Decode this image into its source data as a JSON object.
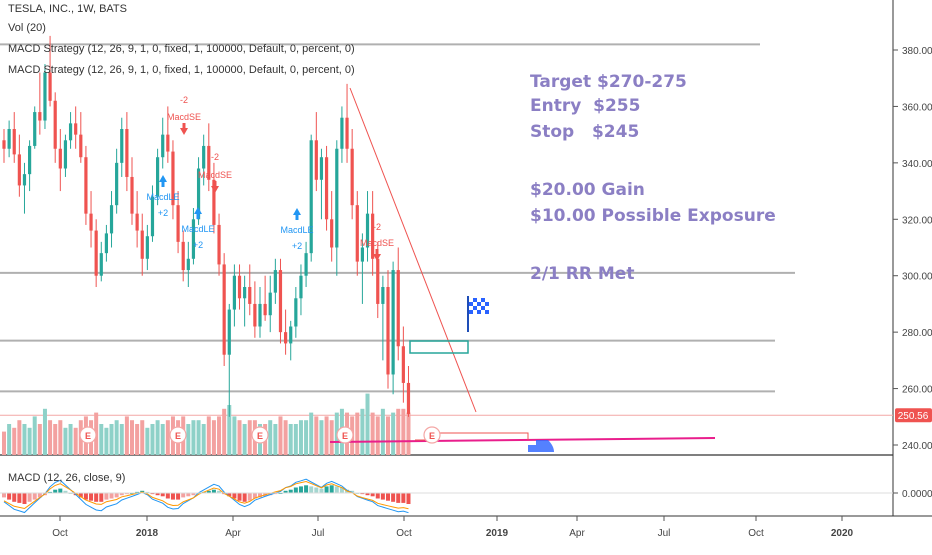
{
  "header": {
    "symbol_line": "TESLA, INC., 1W, BATS",
    "vol_line": "Vol (20)",
    "strategy_line_1": "MACD Strategy (12, 26, 9, 1, 0, fixed, 1, 100000, Default, 0, percent, 0)",
    "strategy_line_2": "MACD Strategy (12, 26, 9, 1, 0, fixed, 1, 100000, Default, 0, percent, 0)"
  },
  "macd_pane": {
    "title": "MACD (12, 26, close, 9)",
    "zero_label": "0.0000"
  },
  "price_badge": "250.56",
  "notes": {
    "line1": "Target $270-275",
    "line2": "Entry  $255",
    "line3": "Stop   $245",
    "line4": "$20.00 Gain",
    "line5": "$10.00 Possible Exposure",
    "line6": "2/1 RR Met"
  },
  "signals": {
    "macdse": "MacdSE",
    "macdle": "MacdLE",
    "minus2": "-2",
    "plus2": "+2",
    "earnings": "E"
  },
  "colors": {
    "up": "#26a69a",
    "down": "#ef5350",
    "vol_up": "#8ed1c8",
    "vol_down": "#f3a1a0",
    "note": "#8b7fc4",
    "hline": "#b0b0b0",
    "trend": "#ef5350",
    "magenta": "#e91e8c",
    "box": "#26a69a"
  },
  "chart_data": {
    "type": "candlestick",
    "title": "TESLA, INC., 1W, BATS",
    "x_ticks": [
      "Oct",
      "2018",
      "Apr",
      "Jul",
      "Oct",
      "2019",
      "Apr",
      "Jul",
      "Oct",
      "2020"
    ],
    "y_ticks": [
      240,
      260,
      280,
      300,
      320,
      340,
      360,
      380
    ],
    "ylim": [
      233,
      395
    ],
    "last_price": 250.56,
    "horizontal_levels": [
      382,
      301,
      277,
      259
    ],
    "series": [
      {
        "name": "TESLA, INC.",
        "ohlc": [
          [
            348,
            352,
            340,
            345
          ],
          [
            345,
            355,
            342,
            352
          ],
          [
            352,
            358,
            340,
            343
          ],
          [
            343,
            350,
            328,
            332
          ],
          [
            332,
            340,
            322,
            336
          ],
          [
            336,
            348,
            330,
            346
          ],
          [
            346,
            360,
            345,
            358
          ],
          [
            358,
            372,
            350,
            355
          ],
          [
            355,
            375,
            352,
            372
          ],
          [
            372,
            385,
            360,
            362
          ],
          [
            362,
            365,
            340,
            345
          ],
          [
            345,
            352,
            330,
            338
          ],
          [
            338,
            350,
            335,
            348
          ],
          [
            348,
            358,
            345,
            354
          ],
          [
            354,
            360,
            345,
            350
          ],
          [
            350,
            358,
            340,
            342
          ],
          [
            342,
            346,
            318,
            322
          ],
          [
            322,
            330,
            310,
            316
          ],
          [
            316,
            320,
            296,
            300
          ],
          [
            300,
            312,
            298,
            308
          ],
          [
            308,
            318,
            305,
            315
          ],
          [
            315,
            330,
            310,
            325
          ],
          [
            325,
            345,
            322,
            340
          ],
          [
            340,
            356,
            335,
            352
          ],
          [
            352,
            358,
            330,
            335
          ],
          [
            335,
            342,
            318,
            322
          ],
          [
            322,
            330,
            310,
            316
          ],
          [
            316,
            322,
            300,
            306
          ],
          [
            306,
            318,
            302,
            314
          ],
          [
            314,
            332,
            312,
            328
          ],
          [
            328,
            345,
            325,
            342
          ],
          [
            342,
            356,
            338,
            350
          ],
          [
            350,
            360,
            340,
            344
          ],
          [
            344,
            348,
            320,
            325
          ],
          [
            325,
            330,
            308,
            312
          ],
          [
            312,
            316,
            298,
            302
          ],
          [
            302,
            312,
            296,
            306
          ],
          [
            306,
            324,
            304,
            320
          ],
          [
            320,
            342,
            318,
            338
          ],
          [
            338,
            350,
            332,
            346
          ],
          [
            346,
            354,
            330,
            334
          ],
          [
            334,
            340,
            315,
            318
          ],
          [
            318,
            322,
            300,
            304
          ],
          [
            304,
            308,
            268,
            272
          ],
          [
            272,
            290,
            250,
            288
          ],
          [
            288,
            304,
            282,
            300
          ],
          [
            300,
            304,
            288,
            292
          ],
          [
            292,
            300,
            282,
            296
          ],
          [
            296,
            304,
            286,
            290
          ],
          [
            290,
            298,
            278,
            282
          ],
          [
            282,
            296,
            278,
            290
          ],
          [
            290,
            300,
            284,
            286
          ],
          [
            286,
            300,
            280,
            294
          ],
          [
            294,
            306,
            290,
            302
          ],
          [
            302,
            306,
            276,
            280
          ],
          [
            280,
            288,
            272,
            276
          ],
          [
            276,
            284,
            270,
            282
          ],
          [
            282,
            296,
            278,
            292
          ],
          [
            292,
            304,
            286,
            300
          ],
          [
            300,
            312,
            296,
            308
          ],
          [
            308,
            350,
            305,
            348
          ],
          [
            348,
            358,
            330,
            334
          ],
          [
            334,
            345,
            320,
            342
          ],
          [
            342,
            346,
            316,
            320
          ],
          [
            320,
            330,
            305,
            310
          ],
          [
            310,
            348,
            300,
            345
          ],
          [
            345,
            360,
            340,
            356
          ],
          [
            356,
            368,
            340,
            345
          ],
          [
            345,
            352,
            320,
            325
          ],
          [
            325,
            330,
            300,
            305
          ],
          [
            305,
            315,
            290,
            310
          ],
          [
            310,
            330,
            305,
            322
          ],
          [
            322,
            330,
            300,
            306
          ],
          [
            306,
            312,
            285,
            290
          ],
          [
            290,
            300,
            270,
            296
          ],
          [
            296,
            302,
            260,
            265
          ],
          [
            265,
            305,
            258,
            302
          ],
          [
            302,
            310,
            270,
            275
          ],
          [
            275,
            282,
            255,
            262
          ],
          [
            262,
            268,
            250,
            251
          ]
        ]
      }
    ],
    "annotations": [
      "Target $270-275",
      "Entry  $255",
      "Stop   $245",
      "$20.00 Gain",
      "$10.00 Possible Exposure",
      "2/1 RR Met"
    ]
  }
}
